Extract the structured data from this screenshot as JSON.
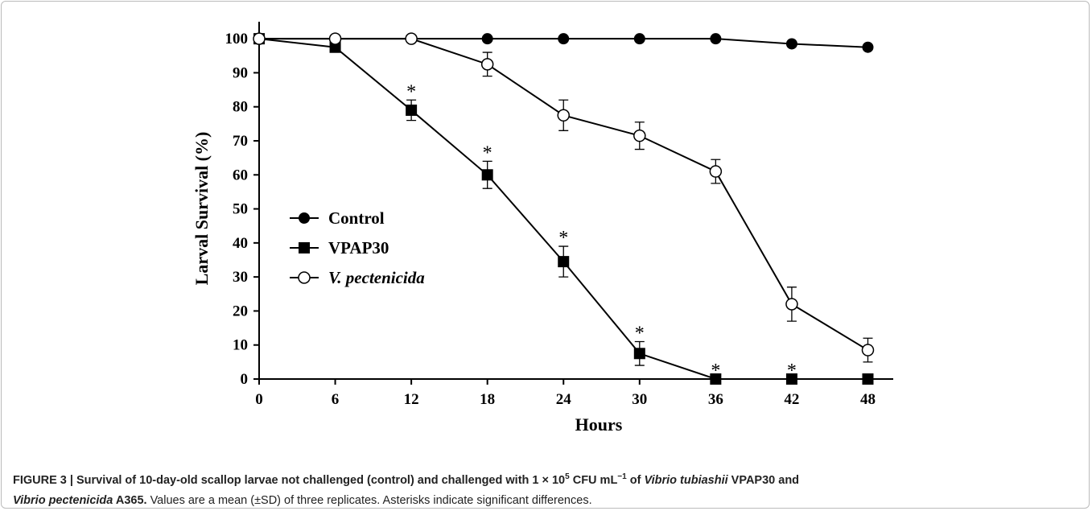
{
  "chart_data": {
    "type": "line",
    "xlabel": "Hours",
    "ylabel": "Larval Survival (%)",
    "x": [
      0,
      6,
      12,
      18,
      24,
      30,
      36,
      42,
      48
    ],
    "xlim": [
      0,
      50
    ],
    "xticks": [
      0,
      6,
      12,
      18,
      24,
      30,
      36,
      42,
      48
    ],
    "ylim": [
      0,
      105
    ],
    "yticks": [
      0,
      10,
      20,
      30,
      40,
      50,
      60,
      70,
      80,
      90,
      100
    ],
    "legend": "upper-left",
    "series": [
      {
        "name": "Control",
        "color": "#000000",
        "marker": "filled-circle",
        "values": [
          100,
          100,
          100,
          100,
          100,
          100,
          100,
          98.5,
          97.5
        ]
      },
      {
        "name": "VPAP30",
        "color": "#000000",
        "marker": "filled-square",
        "values": [
          100,
          97.5,
          79,
          60,
          34.5,
          7.5,
          0,
          0,
          0
        ],
        "errors": [
          0,
          0,
          3,
          4,
          4.5,
          3.5,
          0,
          0,
          0
        ],
        "significance": [
          null,
          null,
          "*",
          "*",
          "*",
          "*",
          "*",
          "*",
          null
        ]
      },
      {
        "name": "V. pectenicida",
        "color": "#000000",
        "marker": "open-circle",
        "values": [
          100,
          100,
          100,
          92.5,
          77.5,
          71.5,
          61,
          22,
          8.5
        ],
        "errors": [
          0,
          0,
          0,
          3.5,
          4.5,
          4,
          3.5,
          5,
          3.5
        ]
      }
    ]
  },
  "caption": [
    "FIGURE 3 | Survival of 10-day-old scallop larvae not challenged (control) and challenged with 1 × 10",
    "5",
    " CFU mL",
    "−1",
    " of ",
    "Vibrio tubiashii",
    " VPAP30 and",
    "Vibrio pectenicida",
    " A365.",
    " Values are a mean (±SD) of three replicates. Asterisks indicate significant differences."
  ]
}
